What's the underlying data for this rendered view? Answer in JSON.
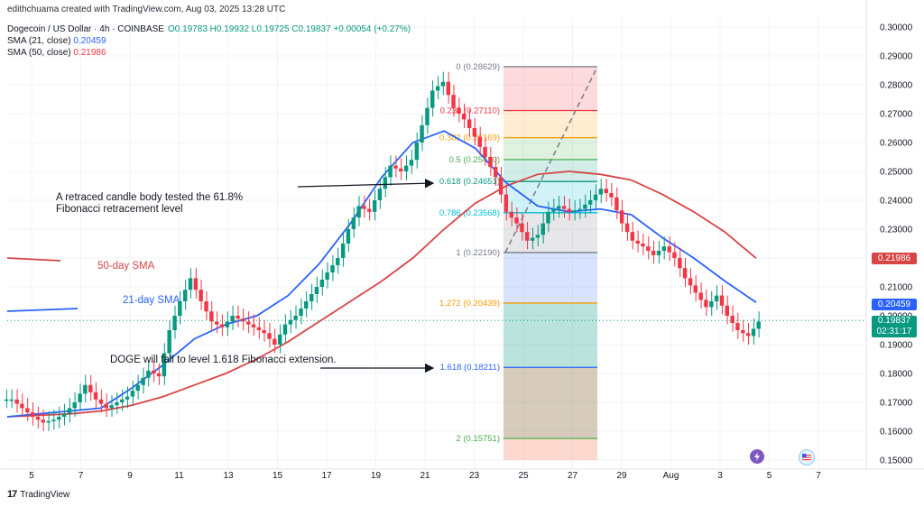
{
  "header": {
    "credit": "edithchuama created with TradingView.com, Aug 03, 2025 13:28 UTC",
    "symbol": "Dogecoin / US Dollar · 4h · COINBASE",
    "ohlc": "O0.19783 H0.19932 L0.19725 C0.19837 +0.00054 (+0.27%)",
    "sma21_label": "SMA (21, close)",
    "sma21_value": "0.20459",
    "sma50_label": "SMA (50, close)",
    "sma50_value": "0.21986"
  },
  "footer": {
    "brand": "TradingView"
  },
  "price_tags": {
    "sma50": "0.21986",
    "sma21": "0.20459",
    "last_price": "0.19837",
    "countdown": "02:31:17"
  },
  "annotations": {
    "note1_line1": "A retraced candle body tested the 61.8%",
    "note1_line2": "Fibonacci retracement level",
    "note2": "DOGE will fall to level 1.618 Fibonacci extension.",
    "sma50_legend": "50-day SMA",
    "sma21_legend": "21-day SMA"
  },
  "colors": {
    "up": "#089981",
    "down": "#f23645",
    "sma21": "#2962ff",
    "sma50": "#d84545",
    "grid": "#f0f3fa"
  },
  "chart_data": {
    "type": "candlestick",
    "title": "Dogecoin / US Dollar · 4h · COINBASE",
    "y_ticks": [
      "0.30000",
      "0.29000",
      "0.28000",
      "0.27000",
      "0.26000",
      "0.25000",
      "0.24000",
      "0.23000",
      "0.22000",
      "0.21000",
      "0.20000",
      "0.19000",
      "0.18000",
      "0.17000",
      "0.16000",
      "0.15000"
    ],
    "x_ticks": [
      "5",
      "7",
      "9",
      "11",
      "13",
      "15",
      "17",
      "19",
      "21",
      "23",
      "25",
      "27",
      "29",
      "Aug",
      "3",
      "5",
      "7"
    ],
    "ylim": [
      0.148,
      0.302
    ],
    "fib_levels": [
      {
        "label": "0 (0.28629)",
        "value": 0.28629,
        "color": "#787b86"
      },
      {
        "label": "0.236 (0.27110)",
        "value": 0.2711,
        "color": "#f23645"
      },
      {
        "label": "0.382 (0.26169)",
        "value": 0.26169,
        "color": "#ff9800"
      },
      {
        "label": "0.5 (0.25410)",
        "value": 0.2541,
        "color": "#4caf50"
      },
      {
        "label": "0.618 (0.24651)",
        "value": 0.24651,
        "color": "#089981"
      },
      {
        "label": "0.786 (0.23568)",
        "value": 0.23568,
        "color": "#00bcd4"
      },
      {
        "label": "1 (0.22190)",
        "value": 0.2219,
        "color": "#787b86"
      },
      {
        "label": "1.272 (0.20439)",
        "value": 0.20439,
        "color": "#ff9800"
      },
      {
        "label": "1.618 (0.18211)",
        "value": 0.18211,
        "color": "#2962ff"
      },
      {
        "label": "2 (0.15751)",
        "value": 0.15751,
        "color": "#4caf50"
      }
    ],
    "price_series": [
      0.171,
      0.168,
      0.165,
      0.163,
      0.164,
      0.166,
      0.17,
      0.176,
      0.171,
      0.168,
      0.17,
      0.172,
      0.176,
      0.181,
      0.179,
      0.195,
      0.205,
      0.213,
      0.205,
      0.198,
      0.196,
      0.2,
      0.198,
      0.196,
      0.194,
      0.19,
      0.197,
      0.2,
      0.205,
      0.21,
      0.215,
      0.22,
      0.23,
      0.238,
      0.236,
      0.244,
      0.252,
      0.25,
      0.254,
      0.266,
      0.278,
      0.281,
      0.272,
      0.268,
      0.262,
      0.255,
      0.248,
      0.236,
      0.232,
      0.226,
      0.228,
      0.236,
      0.238,
      0.236,
      0.237,
      0.24,
      0.244,
      0.241,
      0.232,
      0.226,
      0.224,
      0.221,
      0.224,
      0.22,
      0.213,
      0.208,
      0.203,
      0.207,
      0.2,
      0.195,
      0.193,
      0.198
    ],
    "sma21_series": [
      0.165,
      0.166,
      0.167,
      0.168,
      0.175,
      0.183,
      0.192,
      0.197,
      0.2,
      0.207,
      0.218,
      0.232,
      0.248,
      0.26,
      0.264,
      0.258,
      0.246,
      0.238,
      0.236,
      0.237,
      0.235,
      0.227,
      0.22,
      0.212,
      0.2046
    ],
    "sma50_series": [
      0.165,
      0.1655,
      0.166,
      0.167,
      0.169,
      0.172,
      0.176,
      0.18,
      0.185,
      0.191,
      0.198,
      0.205,
      0.212,
      0.22,
      0.23,
      0.239,
      0.245,
      0.249,
      0.25,
      0.249,
      0.247,
      0.242,
      0.236,
      0.229,
      0.2199
    ]
  }
}
